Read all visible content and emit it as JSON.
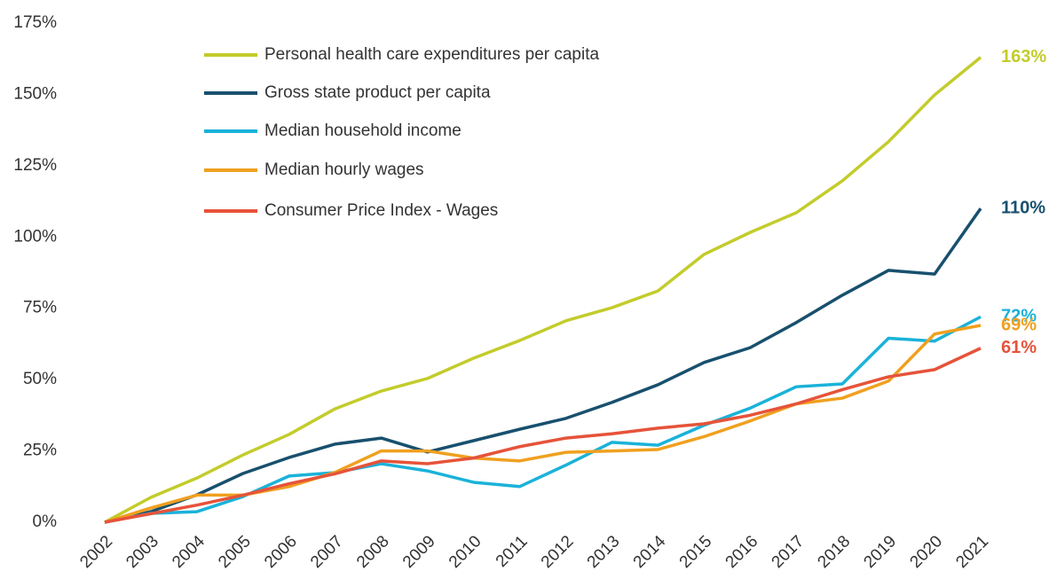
{
  "chart_data": {
    "type": "line",
    "x": [
      "2002",
      "2003",
      "2004",
      "2005",
      "2006",
      "2007",
      "2008",
      "2009",
      "2010",
      "2011",
      "2012",
      "2013",
      "2014",
      "2015",
      "2016",
      "2017",
      "2018",
      "2019",
      "2020",
      "2021"
    ],
    "ylim": [
      0,
      175
    ],
    "yticks": [
      {
        "value": 0,
        "label": "0%"
      },
      {
        "value": 25,
        "label": "25%"
      },
      {
        "value": 50,
        "label": "50%"
      },
      {
        "value": 75,
        "label": "75%"
      },
      {
        "value": 100,
        "label": "100%"
      },
      {
        "value": 125,
        "label": "125%"
      },
      {
        "value": 150,
        "label": "150%"
      },
      {
        "value": 175,
        "label": "175%"
      }
    ],
    "grid": false,
    "legend": "top-left",
    "series": [
      {
        "name": "Personal health care expenditures per capita",
        "color": "#c3cc2b",
        "values": [
          0,
          8.7,
          15.5,
          23.6,
          30.8,
          39.8,
          46,
          50.4,
          57.5,
          63.7,
          70.6,
          75.2,
          81.1,
          93.9,
          101.6,
          108.5,
          119.7,
          133.4,
          149.8,
          163
        ],
        "value_labels": [
          null,
          null,
          null,
          null,
          null,
          null,
          null,
          null,
          null,
          null,
          null,
          null,
          null,
          null,
          null,
          null,
          null,
          null,
          null,
          "163%"
        ]
      },
      {
        "name": "Gross state product per capita",
        "color": "#18506e",
        "values": [
          0,
          3.7,
          9.6,
          17.1,
          22.7,
          27.4,
          29.5,
          24.6,
          28.6,
          32.6,
          36.4,
          42,
          48.2,
          56,
          61.2,
          70,
          79.6,
          88.3,
          87,
          110
        ],
        "value_labels": [
          null,
          null,
          null,
          null,
          null,
          null,
          null,
          null,
          null,
          null,
          null,
          null,
          null,
          null,
          null,
          null,
          null,
          null,
          null,
          "110%"
        ]
      },
      {
        "name": "Median household income",
        "color": "#1ab2d9",
        "values": [
          0,
          3.1,
          3.7,
          9,
          16.2,
          17.4,
          20.5,
          18,
          14,
          12.5,
          20,
          28,
          27,
          34,
          40,
          47.5,
          48.5,
          64.5,
          63.5,
          72
        ],
        "value_labels": [
          null,
          null,
          null,
          null,
          null,
          null,
          null,
          null,
          null,
          null,
          null,
          null,
          null,
          null,
          null,
          null,
          null,
          null,
          null,
          "72%"
        ]
      },
      {
        "name": "Median hourly wages",
        "color": "#f0a01f",
        "values": [
          0,
          5,
          9.5,
          9.5,
          12.5,
          17.5,
          25,
          25,
          22.5,
          21.5,
          24.5,
          25,
          25.5,
          30,
          35.5,
          41.5,
          43.5,
          49.5,
          66,
          69
        ],
        "value_labels": [
          null,
          null,
          null,
          null,
          null,
          null,
          null,
          null,
          null,
          null,
          null,
          null,
          null,
          null,
          null,
          null,
          null,
          null,
          null,
          "69%"
        ]
      },
      {
        "name": "Consumer Price Index - Wages",
        "color": "#e6533a",
        "values": [
          0,
          3,
          6,
          9.5,
          13.5,
          17,
          21.5,
          20.5,
          22.5,
          26.5,
          29.5,
          31,
          33,
          34.5,
          37.5,
          41.5,
          46.5,
          51,
          53.5,
          61
        ],
        "value_labels": [
          null,
          null,
          null,
          null,
          null,
          null,
          null,
          null,
          null,
          null,
          null,
          null,
          null,
          null,
          null,
          null,
          null,
          null,
          null,
          "61%"
        ]
      }
    ]
  }
}
